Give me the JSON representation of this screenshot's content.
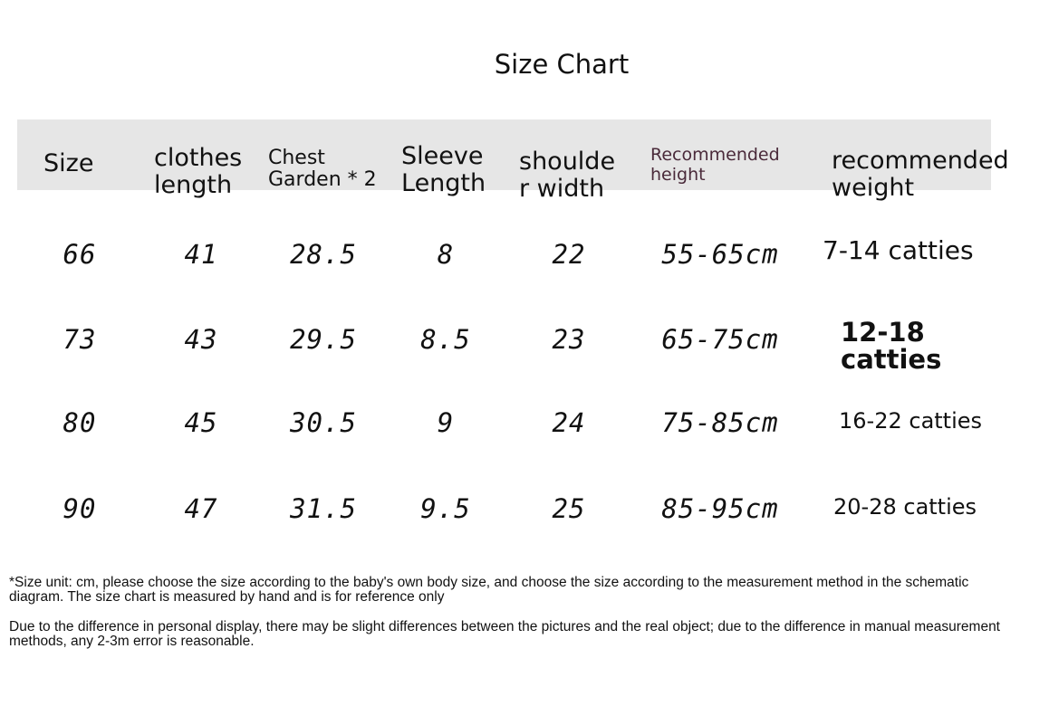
{
  "title": "Size Chart",
  "headers": [
    "Size",
    "clothes length",
    "Chest Garden * 2",
    "Sleeve Length",
    "shoulder width",
    "Recommended height",
    "recommended weight"
  ],
  "header_lines": [
    [
      "Size"
    ],
    [
      "clothes",
      "length"
    ],
    [
      "Chest",
      "Garden * 2"
    ],
    [
      "Sleeve",
      "Length"
    ],
    [
      "shoulde",
      "r width"
    ],
    [
      "Recommended",
      "height"
    ],
    [
      "recommended",
      "weight"
    ]
  ],
  "rows": [
    {
      "size": "66",
      "length": "41",
      "chest": "28.5",
      "sleeve": "8",
      "shoulder": "22",
      "height": "55-65cm",
      "weight": "7-14 catties"
    },
    {
      "size": "73",
      "length": "43",
      "chest": "29.5",
      "sleeve": "8.5",
      "shoulder": "23",
      "height": "65-75cm",
      "weight": "12-18 catties"
    },
    {
      "size": "80",
      "length": "45",
      "chest": "30.5",
      "sleeve": "9",
      "shoulder": "24",
      "height": "75-85cm",
      "weight": "16-22 catties"
    },
    {
      "size": "90",
      "length": "47",
      "chest": "31.5",
      "sleeve": "9.5",
      "shoulder": "25",
      "height": "85-95cm",
      "weight": "20-28 catties"
    }
  ],
  "notes": [
    "*Size unit: cm, please choose the size according to the baby's own body size, and choose the size according to the measurement method in the schematic diagram. The size chart is measured by hand and is for reference only",
    "Due to the difference in personal display, there may be slight differences between the pictures and the real object; due to the difference in manual measurement methods, any 2-3m error is reasonable."
  ],
  "colors": {
    "header_band": "#e6e6e6",
    "recommended_height_header": "#4a2a3a"
  }
}
